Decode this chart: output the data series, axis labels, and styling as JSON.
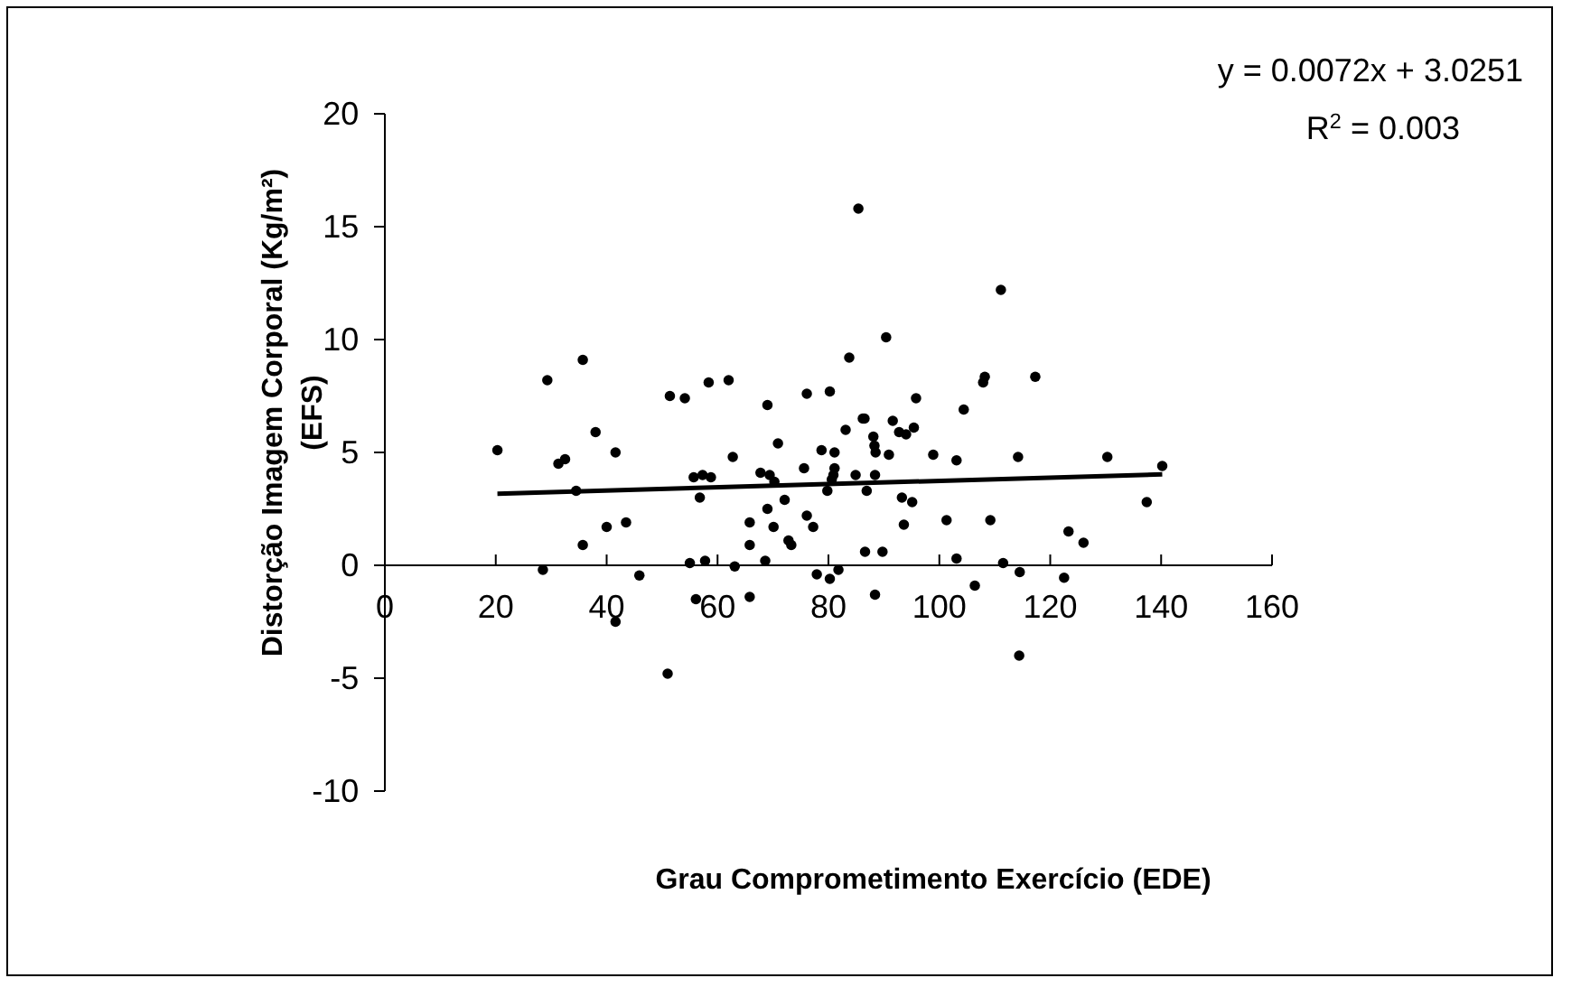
{
  "chart_data": {
    "type": "scatter",
    "xlabel": "Grau Comprometimento Exercício (EDE)",
    "ylabel": "Distorção Imagem Corporal (Kg/m²)\n(EFS)",
    "annotations": [
      "y = 0.0072x + 3.0251",
      "R$^{2}$ = 0.003"
    ],
    "xlim": [
      0,
      160
    ],
    "xticks": [
      0,
      20,
      40,
      60,
      80,
      100,
      120,
      140,
      160
    ],
    "ylim": [
      -10,
      20
    ],
    "yticks": [
      -10,
      -5,
      0,
      5,
      10,
      15,
      20
    ],
    "series": [
      {
        "color": "#000000",
        "marker": "circle",
        "x": [
          20.3,
          29.3,
          35.7,
          38.0,
          31.3,
          32.5,
          41.6,
          34.5,
          40.0,
          43.5,
          35.7,
          28.5,
          45.9,
          41.6,
          51.0,
          51.4,
          54.1,
          58.4,
          62.0,
          62.75,
          55.7,
          57.3,
          58.8,
          56.8,
          55.0,
          57.75,
          56.1,
          63.1,
          65.8,
          65.8,
          65.8,
          68.6,
          69.0,
          67.75,
          69.4,
          70.25,
          70.9,
          69.0,
          70.1,
          72.1,
          72.8,
          73.3,
          75.6,
          76.1,
          76.1,
          77.25,
          77.9,
          80.25,
          78.75,
          81.1,
          81.1,
          80.9,
          80.6,
          79.8,
          80.25,
          81.8,
          83.1,
          83.75,
          85.4,
          86.2,
          86.5,
          84.9,
          86.9,
          86.6,
          88.1,
          88.3,
          88.5,
          88.4,
          88.4,
          89.75,
          90.4,
          90.9,
          91.6,
          92.75,
          94.0,
          93.25,
          93.6,
          95.1,
          95.4,
          95.8,
          98.9,
          101.3,
          103.1,
          104.4,
          103.1,
          106.4,
          107.9,
          108.2,
          109.2,
          111.1,
          111.5,
          114.2,
          114.5,
          114.4,
          117.3,
          122.5,
          123.3,
          126.0,
          130.3,
          137.4,
          140.2
        ],
        "values": [
          5.1,
          8.2,
          9.1,
          5.9,
          4.5,
          4.7,
          5.0,
          3.3,
          1.7,
          1.9,
          0.9,
          -0.2,
          -0.45,
          -2.5,
          -4.8,
          7.5,
          7.4,
          8.1,
          8.2,
          4.8,
          3.9,
          4.0,
          3.9,
          3.0,
          0.1,
          0.2,
          -1.5,
          -0.05,
          -1.4,
          0.9,
          1.9,
          0.2,
          7.1,
          4.1,
          4.0,
          3.7,
          5.4,
          2.5,
          1.7,
          2.9,
          1.1,
          0.9,
          4.3,
          2.2,
          7.6,
          1.7,
          -0.4,
          7.7,
          5.1,
          5.0,
          4.3,
          4.0,
          3.8,
          3.3,
          -0.6,
          -0.2,
          6.0,
          9.2,
          15.8,
          6.5,
          6.5,
          4.0,
          3.3,
          0.6,
          5.7,
          5.3,
          5.0,
          4.0,
          -1.3,
          0.6,
          10.1,
          4.9,
          6.4,
          5.9,
          5.8,
          3.0,
          1.8,
          2.8,
          6.1,
          7.4,
          4.9,
          2.0,
          4.65,
          6.9,
          0.3,
          -0.9,
          8.1,
          8.35,
          2.0,
          12.2,
          0.1,
          4.8,
          -0.3,
          -4.0,
          8.35,
          -0.55,
          1.5,
          1.0,
          4.8,
          2.8,
          4.4
        ]
      },
      {
        "type": "line",
        "color": "#000000",
        "marker": "none",
        "x": [
          20.3,
          140.2
        ],
        "values": [
          3.17,
          4.03
        ]
      }
    ]
  }
}
